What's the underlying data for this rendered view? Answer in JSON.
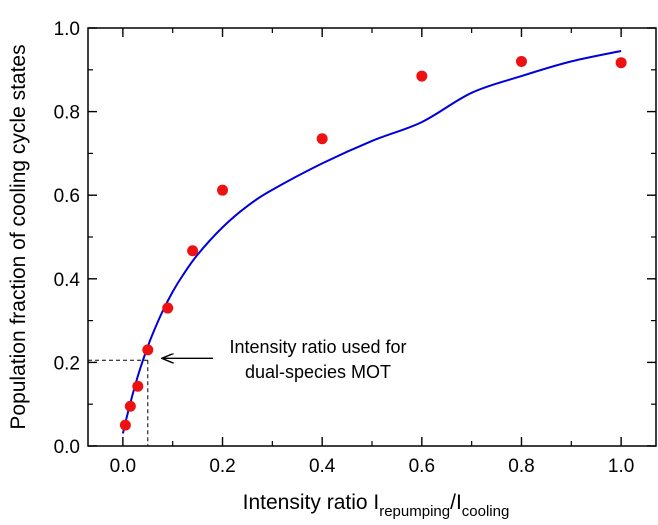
{
  "chart_data": {
    "type": "scatter",
    "title": "",
    "xlabel": {
      "main": "Intensity ratio I",
      "sub1": "repumping",
      "sep": "/I",
      "sub2": "cooling"
    },
    "ylabel": "Population fraction of cooling cycle states",
    "xlim": [
      -0.07,
      1.07
    ],
    "ylim": [
      0.0,
      1.0
    ],
    "x_ticks": [
      "0.0",
      "0.2",
      "0.4",
      "0.6",
      "0.8",
      "1.0"
    ],
    "y_ticks": [
      "0.0",
      "0.2",
      "0.4",
      "0.6",
      "0.8",
      "1.0"
    ],
    "grid": false,
    "legend": "none",
    "series": [
      {
        "kind": "points",
        "color": "#ee1111",
        "x": [
          0.005,
          0.015,
          0.03,
          0.05,
          0.09,
          0.14,
          0.2,
          0.4,
          0.6,
          0.8,
          1.0
        ],
        "y": [
          0.05,
          0.095,
          0.143,
          0.23,
          0.33,
          0.467,
          0.612,
          0.735,
          0.885,
          0.92,
          0.917
        ]
      },
      {
        "kind": "fit_line",
        "color": "#0000dd",
        "x": [
          0.0,
          0.01,
          0.02,
          0.03,
          0.04,
          0.05,
          0.06,
          0.08,
          0.1,
          0.12,
          0.15,
          0.2,
          0.25,
          0.3,
          0.4,
          0.5,
          0.6,
          0.7,
          0.8,
          0.9,
          1.0
        ],
        "y": [
          0.03,
          0.08,
          0.125,
          0.167,
          0.204,
          0.238,
          0.269,
          0.323,
          0.369,
          0.408,
          0.458,
          0.523,
          0.574,
          0.613,
          0.676,
          0.73,
          0.775,
          0.845,
          0.885,
          0.92,
          0.945
        ]
      }
    ],
    "annotation": {
      "text_line1": "Intensity ratio used for",
      "text_line2": "dual-species MOT",
      "arrow_target": [
        0.05,
        0.205
      ],
      "marker_x": 0.05,
      "marker_y": 0.205
    }
  }
}
